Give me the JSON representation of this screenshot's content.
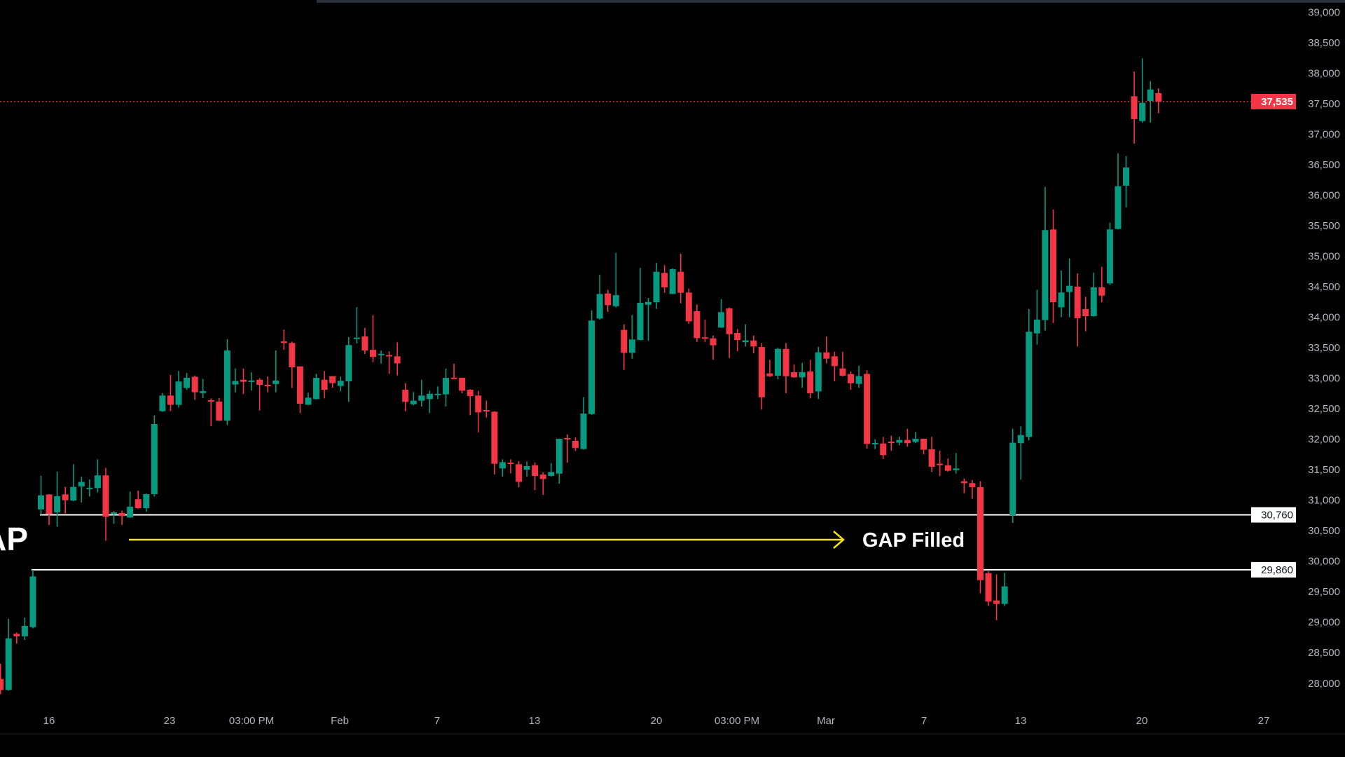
{
  "colors": {
    "background": "#000000",
    "up": "#089981",
    "down": "#f23645",
    "level_line": "#ffffff",
    "arrow": "#f5e50f",
    "axis_text": "#b2b5be"
  },
  "annotations": {
    "left_text": "GAP",
    "arrow_text": "GAP Filled"
  },
  "chart_data": {
    "type": "candlestick",
    "title": "",
    "ylim": [
      27800,
      39000
    ],
    "y_ticks": [
      "39,000",
      "38,500",
      "38,000",
      "37,500",
      "37,000",
      "36,500",
      "36,000",
      "35,500",
      "35,000",
      "34,500",
      "34,000",
      "33,500",
      "33,000",
      "32,500",
      "32,000",
      "31,500",
      "31,000",
      "30,500",
      "30,000",
      "29,500",
      "29,000",
      "28,500",
      "28,000"
    ],
    "x_ticks": [
      "16",
      "23",
      "03:00 PM",
      "Feb",
      "7",
      "13",
      "20",
      "03:00 PM",
      "Mar",
      "7",
      "13",
      "20",
      "27"
    ],
    "last_price": {
      "value": 37535,
      "label": "37,535"
    },
    "levels": [
      {
        "value": 30760,
        "label": "30,760"
      },
      {
        "value": 29860,
        "label": "29,860"
      }
    ],
    "ohlc_fields": [
      "open",
      "high",
      "low",
      "close"
    ],
    "candles": [
      [
        28070,
        28320,
        27820,
        27890
      ],
      [
        27890,
        29055,
        27880,
        28735
      ],
      [
        28810,
        28830,
        28650,
        28770
      ],
      [
        28770,
        29075,
        28710,
        28940
      ],
      [
        28920,
        29860,
        28900,
        29750
      ],
      [
        30850,
        31400,
        30760,
        31080
      ],
      [
        31095,
        31100,
        30594,
        30770
      ],
      [
        30800,
        31470,
        30565,
        31066
      ],
      [
        31095,
        31220,
        30780,
        31000
      ],
      [
        30995,
        31590,
        30985,
        31218
      ],
      [
        31226,
        31386,
        30963,
        31300
      ],
      [
        31190,
        31340,
        31060,
        31205
      ],
      [
        31200,
        31670,
        31130,
        31407
      ],
      [
        31407,
        31530,
        30336,
        30730
      ],
      [
        30780,
        30820,
        30615,
        30800
      ],
      [
        30790,
        30830,
        30595,
        30740
      ],
      [
        30717,
        31140,
        30710,
        30894
      ],
      [
        31017,
        31160,
        30860,
        30870
      ],
      [
        30870,
        31110,
        30810,
        31100
      ],
      [
        31100,
        32390,
        31060,
        32248
      ],
      [
        32460,
        32757,
        32450,
        32716
      ],
      [
        32716,
        33056,
        32460,
        32564
      ],
      [
        32564,
        33118,
        32520,
        32946
      ],
      [
        32840,
        33085,
        32810,
        33007
      ],
      [
        33024,
        33044,
        32646,
        32770
      ],
      [
        32757,
        32987,
        32675,
        32790
      ],
      [
        32640,
        32666,
        32215,
        32626
      ],
      [
        32617,
        32675,
        32300,
        32305
      ],
      [
        32305,
        33640,
        32232,
        33455
      ],
      [
        32897,
        33160,
        32765,
        32954
      ],
      [
        32975,
        33160,
        32740,
        32942
      ],
      [
        32950,
        33097,
        32798,
        32962
      ],
      [
        32975,
        33003,
        32470,
        32892
      ],
      [
        32892,
        33028,
        32770,
        32872
      ],
      [
        32905,
        33455,
        32770,
        32962
      ],
      [
        33603,
        33795,
        33467,
        33578
      ],
      [
        33578,
        33600,
        32840,
        33180
      ],
      [
        33194,
        33194,
        32428,
        32582
      ],
      [
        32566,
        32765,
        32560,
        32681
      ],
      [
        32658,
        33072,
        32650,
        33007
      ],
      [
        32976,
        33118,
        32670,
        32811
      ],
      [
        33034,
        33034,
        32842,
        32919
      ],
      [
        32873,
        33026,
        32785,
        32957
      ],
      [
        32949,
        33673,
        32612,
        33543
      ],
      [
        33650,
        34163,
        33570,
        33666
      ],
      [
        33685,
        33826,
        33397,
        33455
      ],
      [
        33466,
        34037,
        33263,
        33348
      ],
      [
        33390,
        33455,
        33240,
        33400
      ],
      [
        33380,
        33440,
        33070,
        33375
      ],
      [
        33359,
        33589,
        33045,
        33244
      ],
      [
        32811,
        32919,
        32459,
        32612
      ],
      [
        32574,
        32773,
        32555,
        32632
      ],
      [
        32632,
        32976,
        32536,
        32716
      ],
      [
        32658,
        32796,
        32428,
        32746
      ],
      [
        32740,
        32865,
        32658,
        32745
      ],
      [
        32735,
        33156,
        32536,
        33007
      ],
      [
        33010,
        33237,
        33000,
        33000
      ],
      [
        33007,
        33010,
        32754,
        32796
      ],
      [
        32811,
        32820,
        32394,
        32708
      ],
      [
        32716,
        32792,
        32114,
        32440
      ],
      [
        32478,
        32635,
        32356,
        32459
      ],
      [
        32451,
        32460,
        31425,
        31597
      ],
      [
        31521,
        31670,
        31387,
        31624
      ],
      [
        31617,
        31670,
        31440,
        31605
      ],
      [
        31590,
        31640,
        31214,
        31302
      ],
      [
        31502,
        31636,
        31387,
        31559
      ],
      [
        31574,
        31620,
        31165,
        31398
      ],
      [
        31421,
        31456,
        31088,
        31348
      ],
      [
        31398,
        31609,
        31390,
        31463
      ],
      [
        31436,
        32010,
        31272,
        32007
      ],
      [
        32020,
        32080,
        31613,
        32010
      ],
      [
        31973,
        32030,
        31808,
        31858
      ],
      [
        31839,
        32689,
        31830,
        32421
      ],
      [
        32413,
        34113,
        32400,
        33945
      ],
      [
        33979,
        34699,
        33960,
        34381
      ],
      [
        34389,
        34450,
        34087,
        34198
      ],
      [
        34182,
        35056,
        34160,
        34362
      ],
      [
        33792,
        33884,
        33137,
        33416
      ],
      [
        33416,
        34037,
        33321,
        33635
      ],
      [
        33627,
        34807,
        33620,
        34236
      ],
      [
        34205,
        34316,
        33615,
        34250
      ],
      [
        34247,
        34891,
        34136,
        34745
      ],
      [
        34726,
        34853,
        34401,
        34489
      ],
      [
        34381,
        34800,
        34380,
        34787
      ],
      [
        34745,
        35040,
        34228,
        34401
      ],
      [
        34404,
        34470,
        33891,
        33933
      ],
      [
        34098,
        34209,
        33596,
        33658
      ],
      [
        33670,
        33960,
        33590,
        33660
      ],
      [
        33654,
        33700,
        33301,
        33539
      ],
      [
        33830,
        34297,
        33825,
        34083
      ],
      [
        34144,
        34160,
        33332,
        33723
      ],
      [
        33742,
        33807,
        33443,
        33627
      ],
      [
        33590,
        33884,
        33520,
        33620
      ],
      [
        33619,
        33700,
        33409,
        33520
      ],
      [
        33512,
        33577,
        32486,
        32689
      ],
      [
        33079,
        33301,
        33020,
        33033
      ],
      [
        33041,
        33500,
        32983,
        33481
      ],
      [
        33481,
        33577,
        32754,
        33033
      ],
      [
        33098,
        33225,
        33010,
        33014
      ],
      [
        33014,
        33252,
        32842,
        33098
      ],
      [
        33110,
        33301,
        32669,
        32754
      ],
      [
        32784,
        33512,
        32658,
        33424
      ],
      [
        33424,
        33684,
        33244,
        33321
      ],
      [
        33359,
        33435,
        32949,
        33198
      ],
      [
        33160,
        33435,
        33030,
        33041
      ],
      [
        33068,
        33110,
        32811,
        32918
      ],
      [
        32907,
        33206,
        32842,
        33033
      ],
      [
        33071,
        33129,
        31846,
        31923
      ],
      [
        31930,
        32000,
        31840,
        31940
      ],
      [
        31930,
        32037,
        31675,
        31740
      ],
      [
        31960,
        32058,
        31810,
        31950
      ],
      [
        31943,
        32043,
        31900,
        31988
      ],
      [
        31988,
        32172,
        31877,
        31935
      ],
      [
        31954,
        32119,
        31935,
        32008
      ],
      [
        32008,
        32010,
        31751,
        31828
      ],
      [
        31835,
        32038,
        31464,
        31548
      ],
      [
        31598,
        31812,
        31395,
        31590
      ],
      [
        31571,
        31682,
        31470,
        31483
      ],
      [
        31494,
        31774,
        31437,
        31521
      ],
      [
        31311,
        31357,
        31115,
        31280
      ],
      [
        31280,
        31330,
        31023,
        31215
      ],
      [
        31215,
        31311,
        29472,
        29691
      ],
      [
        29806,
        29836,
        29269,
        29338
      ],
      [
        29357,
        29786,
        29032,
        29300
      ],
      [
        29300,
        29809,
        29269,
        29587
      ],
      [
        30755,
        32172,
        30629,
        31943
      ],
      [
        31935,
        32211,
        31337,
        32069
      ],
      [
        32038,
        34133,
        31981,
        33762
      ],
      [
        33735,
        34451,
        33551,
        33961
      ],
      [
        33953,
        36136,
        33781,
        35428
      ],
      [
        35439,
        35765,
        33904,
        34248
      ],
      [
        34163,
        34765,
        34000,
        34405
      ],
      [
        34413,
        34961,
        34000,
        34516
      ],
      [
        34501,
        34719,
        33521,
        33984
      ],
      [
        34133,
        34336,
        33769,
        34018
      ],
      [
        34018,
        34731,
        34010,
        34490
      ],
      [
        34490,
        34827,
        34248,
        34355
      ],
      [
        34555,
        35550,
        34528,
        35439
      ],
      [
        35447,
        36688,
        35440,
        36148
      ],
      [
        36156,
        36642,
        35799,
        36454
      ],
      [
        37622,
        38028,
        36845,
        37247
      ],
      [
        37216,
        38243,
        37190,
        37515
      ],
      [
        37546,
        37871,
        37190,
        37734
      ],
      [
        37672,
        37753,
        37343,
        37535
      ]
    ]
  }
}
